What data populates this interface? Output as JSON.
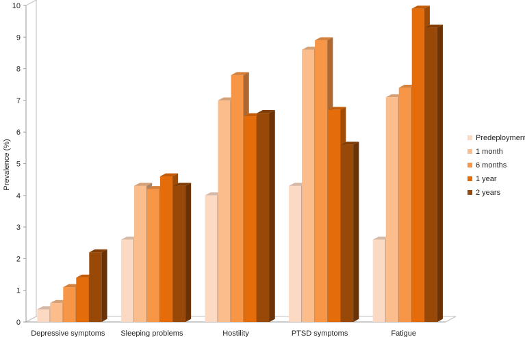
{
  "chart_data": {
    "type": "bar",
    "title": "",
    "xlabel": "",
    "ylabel": "Prevalence (%)",
    "ylim": [
      0,
      10
    ],
    "yticks": [
      "0",
      "1",
      "2",
      "3",
      "4",
      "5",
      "6",
      "7",
      "8",
      "9",
      "10"
    ],
    "grid": false,
    "legend_position": "right",
    "categories": [
      "Depressive symptoms",
      "Sleeping problems",
      "Hostility",
      "PTSD symptoms",
      "Fatigue"
    ],
    "series": [
      {
        "name": "Predeployment",
        "color": "#fbd9c3",
        "values": [
          0.4,
          2.6,
          4.0,
          4.3,
          2.6
        ]
      },
      {
        "name": "1 month",
        "color": "#fbbd8c",
        "values": [
          0.6,
          4.3,
          7.0,
          8.6,
          7.1
        ]
      },
      {
        "name": "6 months",
        "color": "#f79646",
        "values": [
          1.1,
          4.2,
          7.8,
          8.9,
          7.4
        ]
      },
      {
        "name": "1 year",
        "color": "#e46c0a",
        "values": [
          1.4,
          4.6,
          6.5,
          6.7,
          9.9
        ]
      },
      {
        "name": "2 years",
        "color": "#984807",
        "values": [
          2.2,
          4.3,
          6.6,
          5.6,
          9.3
        ]
      }
    ]
  }
}
